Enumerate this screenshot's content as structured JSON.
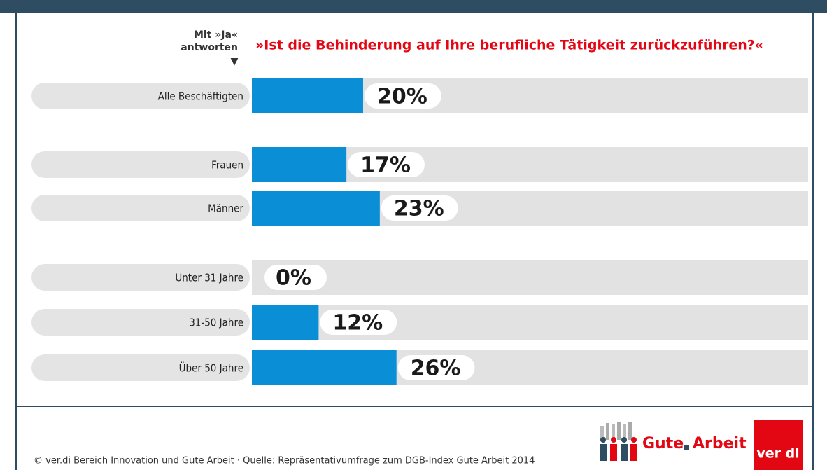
{
  "chart_data": {
    "type": "bar",
    "orientation": "horizontal",
    "header_label": [
      "Mit »Ja«",
      "antworten"
    ],
    "header_marker": "▼",
    "title": "»Ist die Behinderung auf Ihre berufliche Tätigkeit zurückzuführen?«",
    "categories": [
      "Alle Beschäftigten",
      "Frauen",
      "Männer",
      "Unter 31 Jahre",
      "31-50 Jahre",
      "Über 50 Jahre"
    ],
    "values": [
      20,
      17,
      23,
      0,
      12,
      26
    ],
    "value_labels": [
      "20%",
      "17%",
      "23%",
      "0%",
      "12%",
      "26%"
    ],
    "color": "#0a8fd6",
    "xlim": [
      0,
      100
    ],
    "footer": "© ver.di Bereich Innovation und Gute Arbeit · Quelle: Repräsentativumfrage zum DGB-Index Gute Arbeit 2014",
    "logo_gute": "Gute",
    "logo_arbeit": "Arbeit",
    "logo_verdi": "ver di"
  }
}
